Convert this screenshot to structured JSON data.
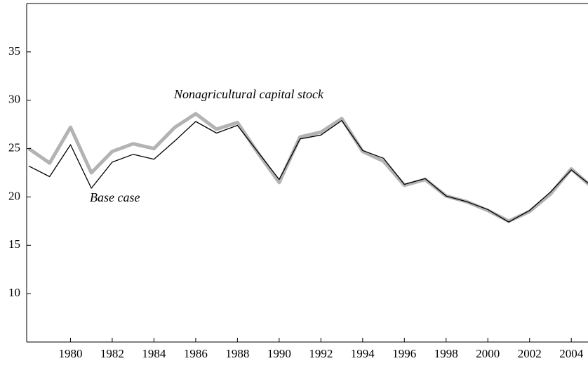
{
  "chart_data": {
    "type": "line",
    "x": [
      1978,
      1979,
      1980,
      1981,
      1982,
      1983,
      1984,
      1985,
      1986,
      1987,
      1988,
      1989,
      1990,
      1991,
      1992,
      1993,
      1994,
      1995,
      1996,
      1997,
      1998,
      1999,
      2000,
      2001,
      2002,
      2003,
      2004,
      2005
    ],
    "series": [
      {
        "name": "Nonagricultural capital stock",
        "color": "#b3b3b3",
        "values": [
          25.0,
          23.5,
          27.2,
          22.5,
          24.7,
          25.5,
          25.0,
          27.2,
          28.6,
          27.0,
          27.7,
          24.5,
          21.5,
          26.2,
          26.7,
          28.1,
          24.7,
          23.7,
          21.2,
          21.8,
          20.1,
          19.5,
          18.6,
          17.5,
          18.5,
          20.3,
          22.9,
          21.0
        ]
      },
      {
        "name": "Base case",
        "color": "#000000",
        "values": [
          23.2,
          22.1,
          25.4,
          20.9,
          23.6,
          24.4,
          23.9,
          25.8,
          27.8,
          26.6,
          27.4,
          24.6,
          21.8,
          26.0,
          26.4,
          27.9,
          24.8,
          24.0,
          21.3,
          21.9,
          20.1,
          19.5,
          18.7,
          17.4,
          18.6,
          20.5,
          22.8,
          21.1
        ]
      }
    ],
    "xlim": [
      1977.9,
      2004.8
    ],
    "xticks": [
      1980,
      1982,
      1984,
      1986,
      1988,
      1990,
      1992,
      1994,
      1996,
      1998,
      2000,
      2002,
      2004
    ],
    "ylim": [
      5,
      40
    ],
    "yticks": [
      10,
      15,
      20,
      25,
      30,
      35
    ],
    "grid": false
  }
}
